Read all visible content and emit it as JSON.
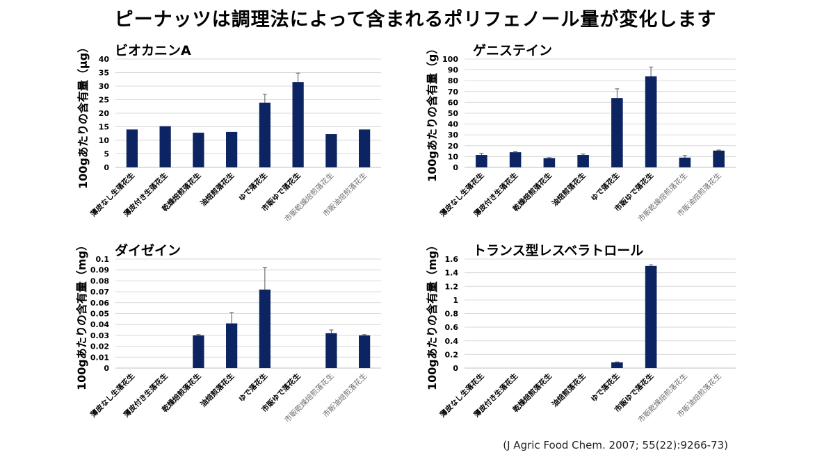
{
  "page": {
    "title": "ピーナッツは調理法によって含まれるポリフェノール量が変化します"
  },
  "citation": "(J Agric Food Chem. 2007; 55(22):9266-73)",
  "colors": {
    "bar": "#0c2461",
    "grid": "#d9d9d9",
    "axis": "#bfbfbf",
    "dark_label": "#000000",
    "light_label": "#6b6b6b"
  },
  "chart_data": [
    {
      "type": "bar",
      "title": "ビオカニンA",
      "ylabel": "100gあたりの含有量（μg）",
      "ylim": [
        0,
        40
      ],
      "yticks": [
        0,
        5,
        10,
        15,
        20,
        25,
        30,
        35,
        40
      ],
      "ytick_labels": [
        "0",
        "5",
        "10",
        "15",
        "20",
        "25",
        "30",
        "35",
        "40"
      ],
      "categories": [
        "薄皮なし生落花生",
        "薄皮付き生落花生",
        "乾燥焙煎落花生",
        "油焙煎落花生",
        "ゆで落花生",
        "市販ゆで落花生",
        "市販乾燥焙煎落花生",
        "市販油焙煎落花生"
      ],
      "label_colors": [
        "dark",
        "dark",
        "dark",
        "dark",
        "dark",
        "dark",
        "light",
        "light"
      ],
      "values": [
        14,
        15.2,
        12.8,
        13.1,
        23.9,
        31.5,
        12.3,
        14
      ],
      "errors": [
        0,
        0,
        0,
        0,
        3.1,
        3.3,
        0,
        0
      ]
    },
    {
      "type": "bar",
      "title": "ゲニステイン",
      "ylabel": "100gあたりの含有量（g）",
      "ylim": [
        0,
        100
      ],
      "yticks": [
        0,
        10,
        20,
        30,
        40,
        50,
        60,
        70,
        80,
        90,
        100
      ],
      "ytick_labels": [
        "0",
        "10",
        "20",
        "30",
        "40",
        "50",
        "60",
        "70",
        "80",
        "90",
        "100"
      ],
      "categories": [
        "薄皮なし生落花生",
        "薄皮付き生落花生",
        "乾燥焙煎落花生",
        "油焙煎落花生",
        "ゆで落花生",
        "市販ゆで落花生",
        "市販乾燥焙煎落花生",
        "市販油焙煎落花生"
      ],
      "label_colors": [
        "dark",
        "dark",
        "dark",
        "dark",
        "dark",
        "dark",
        "light",
        "light"
      ],
      "values": [
        11.5,
        14,
        8.5,
        11.5,
        64,
        84,
        9,
        15.5
      ],
      "errors": [
        1.5,
        0.5,
        0.5,
        0.8,
        8.5,
        8.5,
        2,
        0.5
      ]
    },
    {
      "type": "bar",
      "title": "ダイゼイン",
      "ylabel": "100gあたりの含有量（mg）",
      "ylim": [
        0,
        0.1
      ],
      "yticks": [
        0,
        0.01,
        0.02,
        0.03,
        0.04,
        0.05,
        0.06,
        0.07,
        0.08,
        0.09,
        0.1
      ],
      "ytick_labels": [
        "0",
        "0.01",
        "0.02",
        "0.03",
        "0.04",
        "0.05",
        "0.06",
        "0.07",
        "0.08",
        "0.09",
        "0.1"
      ],
      "categories": [
        "薄皮なし生落花生",
        "薄皮付き生落花生",
        "乾燥焙煎落花生",
        "油焙煎落花生",
        "ゆで落花生",
        "市販ゆで落花生",
        "市販乾燥焙煎落花生",
        "市販油焙煎落花生"
      ],
      "label_colors": [
        "dark",
        "dark",
        "dark",
        "dark",
        "dark",
        "dark",
        "light",
        "light"
      ],
      "values": [
        0,
        0,
        0.03,
        0.041,
        0.072,
        0,
        0.032,
        0.03
      ],
      "errors": [
        0,
        0,
        0.0007,
        0.01,
        0.02,
        0,
        0.003,
        0.0007
      ]
    },
    {
      "type": "bar",
      "title": "トランス型レスベラトロール",
      "ylabel": "100gあたりの含有量（mg）",
      "ylim": [
        0,
        1.6
      ],
      "yticks": [
        0,
        0.2,
        0.4,
        0.6,
        0.8,
        1,
        1.2,
        1.4,
        1.6
      ],
      "ytick_labels": [
        "0",
        "0.2",
        "0.4",
        "0.6",
        "0.8",
        "1",
        "1.2",
        "1.4",
        "1.6"
      ],
      "categories": [
        "薄皮なし生落花生",
        "薄皮付き生落花生",
        "乾燥焙煎落花生",
        "油焙煎落花生",
        "ゆで落花生",
        "市販ゆで落花生",
        "市販乾燥焙煎落花生",
        "市販油焙煎落花生"
      ],
      "label_colors": [
        "dark",
        "dark",
        "dark",
        "dark",
        "dark",
        "dark",
        "light",
        "light"
      ],
      "values": [
        0,
        0,
        0,
        0,
        0.085,
        1.5,
        0,
        0
      ],
      "errors": [
        0,
        0,
        0,
        0,
        0.005,
        0.015,
        0,
        0
      ]
    }
  ]
}
